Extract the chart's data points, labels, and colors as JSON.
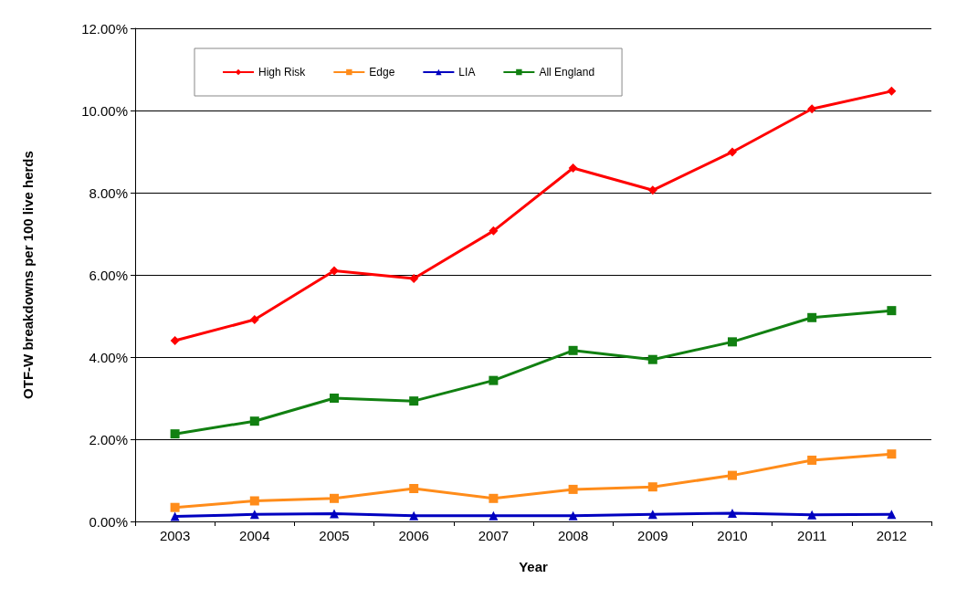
{
  "chart_data": {
    "type": "line",
    "xlabel": "Year",
    "ylabel": "OTF-W breakdowns per 100 live herds",
    "categories": [
      "2003",
      "2004",
      "2005",
      "2006",
      "2007",
      "2008",
      "2009",
      "2010",
      "2011",
      "2012"
    ],
    "series": [
      {
        "name": "High Risk",
        "color": "#ff0000",
        "marker": "diamond",
        "values": [
          4.4,
          4.91,
          6.1,
          5.91,
          7.07,
          8.6,
          8.06,
          8.99,
          10.04,
          10.47
        ]
      },
      {
        "name": "Edge",
        "color": "#ff8c1a",
        "marker": "square",
        "values": [
          0.34,
          0.5,
          0.56,
          0.8,
          0.56,
          0.78,
          0.84,
          1.12,
          1.49,
          1.64
        ]
      },
      {
        "name": "LIA",
        "color": "#0000c0",
        "marker": "triangle",
        "values": [
          0.12,
          0.17,
          0.19,
          0.14,
          0.14,
          0.14,
          0.17,
          0.2,
          0.16,
          0.17
        ]
      },
      {
        "name": "All England",
        "color": "#118011",
        "marker": "square",
        "values": [
          2.13,
          2.44,
          3.0,
          2.93,
          3.43,
          4.16,
          3.94,
          4.37,
          4.96,
          5.13
        ]
      }
    ],
    "ylim": [
      0,
      12
    ],
    "yticks": [
      {
        "value": 0,
        "label": "0.00%"
      },
      {
        "value": 2,
        "label": "2.00%"
      },
      {
        "value": 4,
        "label": "4.00%"
      },
      {
        "value": 6,
        "label": "6.00%"
      },
      {
        "value": 8,
        "label": "8.00%"
      },
      {
        "value": 10,
        "label": "10.00%"
      },
      {
        "value": 12,
        "label": "12.00%"
      }
    ],
    "grid": "y",
    "legend": "top left",
    "line_style": "solid"
  }
}
